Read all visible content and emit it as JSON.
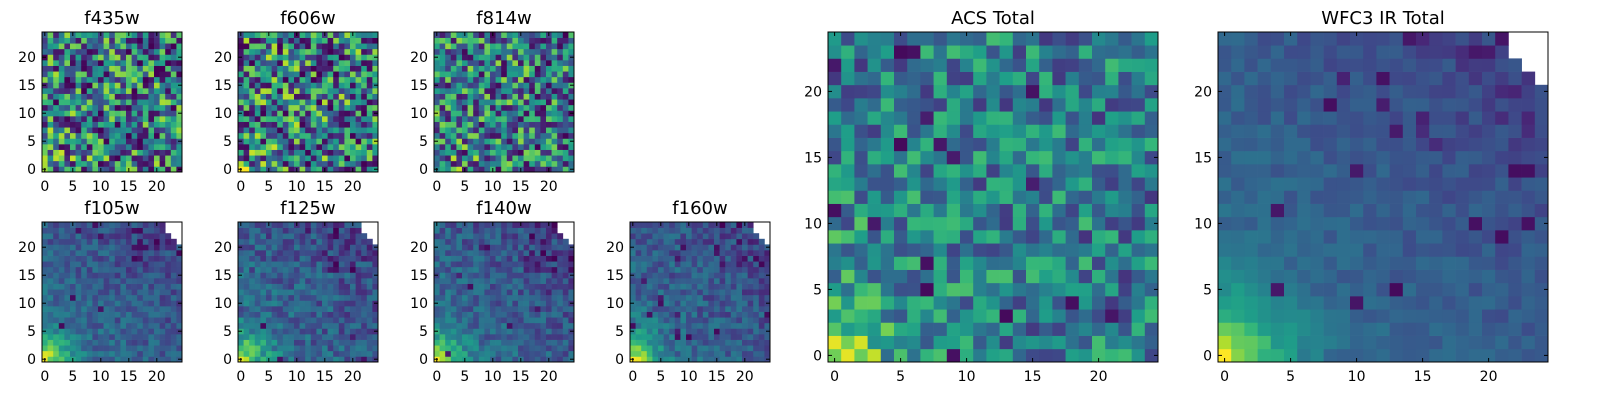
{
  "figure": {
    "colormap": "viridis",
    "colormap_stops": [
      "#440154",
      "#482878",
      "#3e4989",
      "#31688e",
      "#26828e",
      "#1f9e89",
      "#35b779",
      "#6ece58",
      "#b5de2b",
      "#fde725"
    ]
  },
  "chart_data": [
    {
      "type": "heatmap",
      "title": "f435w",
      "grid": "25x25",
      "xlim": [
        -0.5,
        24.5
      ],
      "ylim": [
        -0.5,
        24.5
      ],
      "xticks": [
        "0",
        "5",
        "10",
        "15",
        "20"
      ],
      "yticks": [
        "0",
        "5",
        "10",
        "15",
        "20"
      ],
      "pattern": "noise",
      "noise_level": 0.9,
      "dark_pixel_fraction": 0.07,
      "corner_bright": 0.3,
      "missing_corner": false
    },
    {
      "type": "heatmap",
      "title": "f606w",
      "grid": "25x25",
      "xlim": [
        -0.5,
        24.5
      ],
      "ylim": [
        -0.5,
        24.5
      ],
      "xticks": [
        "0",
        "5",
        "10",
        "15",
        "20"
      ],
      "yticks": [
        "0",
        "5",
        "10",
        "15",
        "20"
      ],
      "pattern": "noise",
      "noise_level": 0.95,
      "dark_pixel_fraction": 0.12,
      "corner_bright": 0.35,
      "missing_corner": false
    },
    {
      "type": "heatmap",
      "title": "f814w",
      "grid": "25x25",
      "xlim": [
        -0.5,
        24.5
      ],
      "ylim": [
        -0.5,
        24.5
      ],
      "xticks": [
        "0",
        "5",
        "10",
        "15",
        "20"
      ],
      "yticks": [
        "0",
        "5",
        "10",
        "15",
        "20"
      ],
      "pattern": "noise",
      "noise_level": 0.85,
      "dark_pixel_fraction": 0.05,
      "corner_bright": 0.45,
      "missing_corner": false
    },
    {
      "type": "heatmap",
      "title": "f105w",
      "grid": "25x25",
      "xlim": [
        -0.5,
        24.5
      ],
      "ylim": [
        -0.5,
        24.5
      ],
      "xticks": [
        "0",
        "5",
        "10",
        "15",
        "20"
      ],
      "yticks": [
        "0",
        "5",
        "10",
        "15",
        "20"
      ],
      "pattern": "gradient",
      "noise_level": 0.12,
      "dark_pixel_fraction": 0.01,
      "corner_bright": 1.0,
      "missing_corner": true
    },
    {
      "type": "heatmap",
      "title": "f125w",
      "grid": "25x25",
      "xlim": [
        -0.5,
        24.5
      ],
      "ylim": [
        -0.5,
        24.5
      ],
      "xticks": [
        "0",
        "5",
        "10",
        "15",
        "20"
      ],
      "yticks": [
        "0",
        "5",
        "10",
        "15",
        "20"
      ],
      "pattern": "gradient",
      "noise_level": 0.15,
      "dark_pixel_fraction": 0.02,
      "corner_bright": 1.0,
      "missing_corner": true
    },
    {
      "type": "heatmap",
      "title": "f140w",
      "grid": "25x25",
      "xlim": [
        -0.5,
        24.5
      ],
      "ylim": [
        -0.5,
        24.5
      ],
      "xticks": [
        "0",
        "5",
        "10",
        "15",
        "20"
      ],
      "yticks": [
        "0",
        "5",
        "10",
        "15",
        "20"
      ],
      "pattern": "gradient",
      "noise_level": 0.13,
      "dark_pixel_fraction": 0.02,
      "corner_bright": 1.0,
      "missing_corner": true
    },
    {
      "type": "heatmap",
      "title": "f160w",
      "grid": "25x25",
      "xlim": [
        -0.5,
        24.5
      ],
      "ylim": [
        -0.5,
        24.5
      ],
      "xticks": [
        "0",
        "5",
        "10",
        "15",
        "20"
      ],
      "yticks": [
        "0",
        "5",
        "10",
        "15",
        "20"
      ],
      "pattern": "gradient",
      "noise_level": 0.13,
      "dark_pixel_fraction": 0.03,
      "corner_bright": 1.0,
      "missing_corner": true
    },
    {
      "type": "heatmap",
      "title": "ACS Total",
      "grid": "25x25",
      "xlim": [
        -0.5,
        24.5
      ],
      "ylim": [
        -0.5,
        24.5
      ],
      "xticks": [
        "0",
        "5",
        "10",
        "15",
        "20"
      ],
      "yticks": [
        "0",
        "5",
        "10",
        "15",
        "20"
      ],
      "pattern": "noise",
      "noise_level": 0.55,
      "dark_pixel_fraction": 0.03,
      "corner_bright": 0.8,
      "missing_corner": false
    },
    {
      "type": "heatmap",
      "title": "WFC3 IR Total",
      "grid": "25x25",
      "xlim": [
        -0.5,
        24.5
      ],
      "ylim": [
        -0.5,
        24.5
      ],
      "xticks": [
        "0",
        "5",
        "10",
        "15",
        "20"
      ],
      "yticks": [
        "0",
        "5",
        "10",
        "15",
        "20"
      ],
      "pattern": "gradient",
      "noise_level": 0.06,
      "dark_pixel_fraction": 0.02,
      "corner_bright": 1.0,
      "missing_corner": true
    }
  ]
}
